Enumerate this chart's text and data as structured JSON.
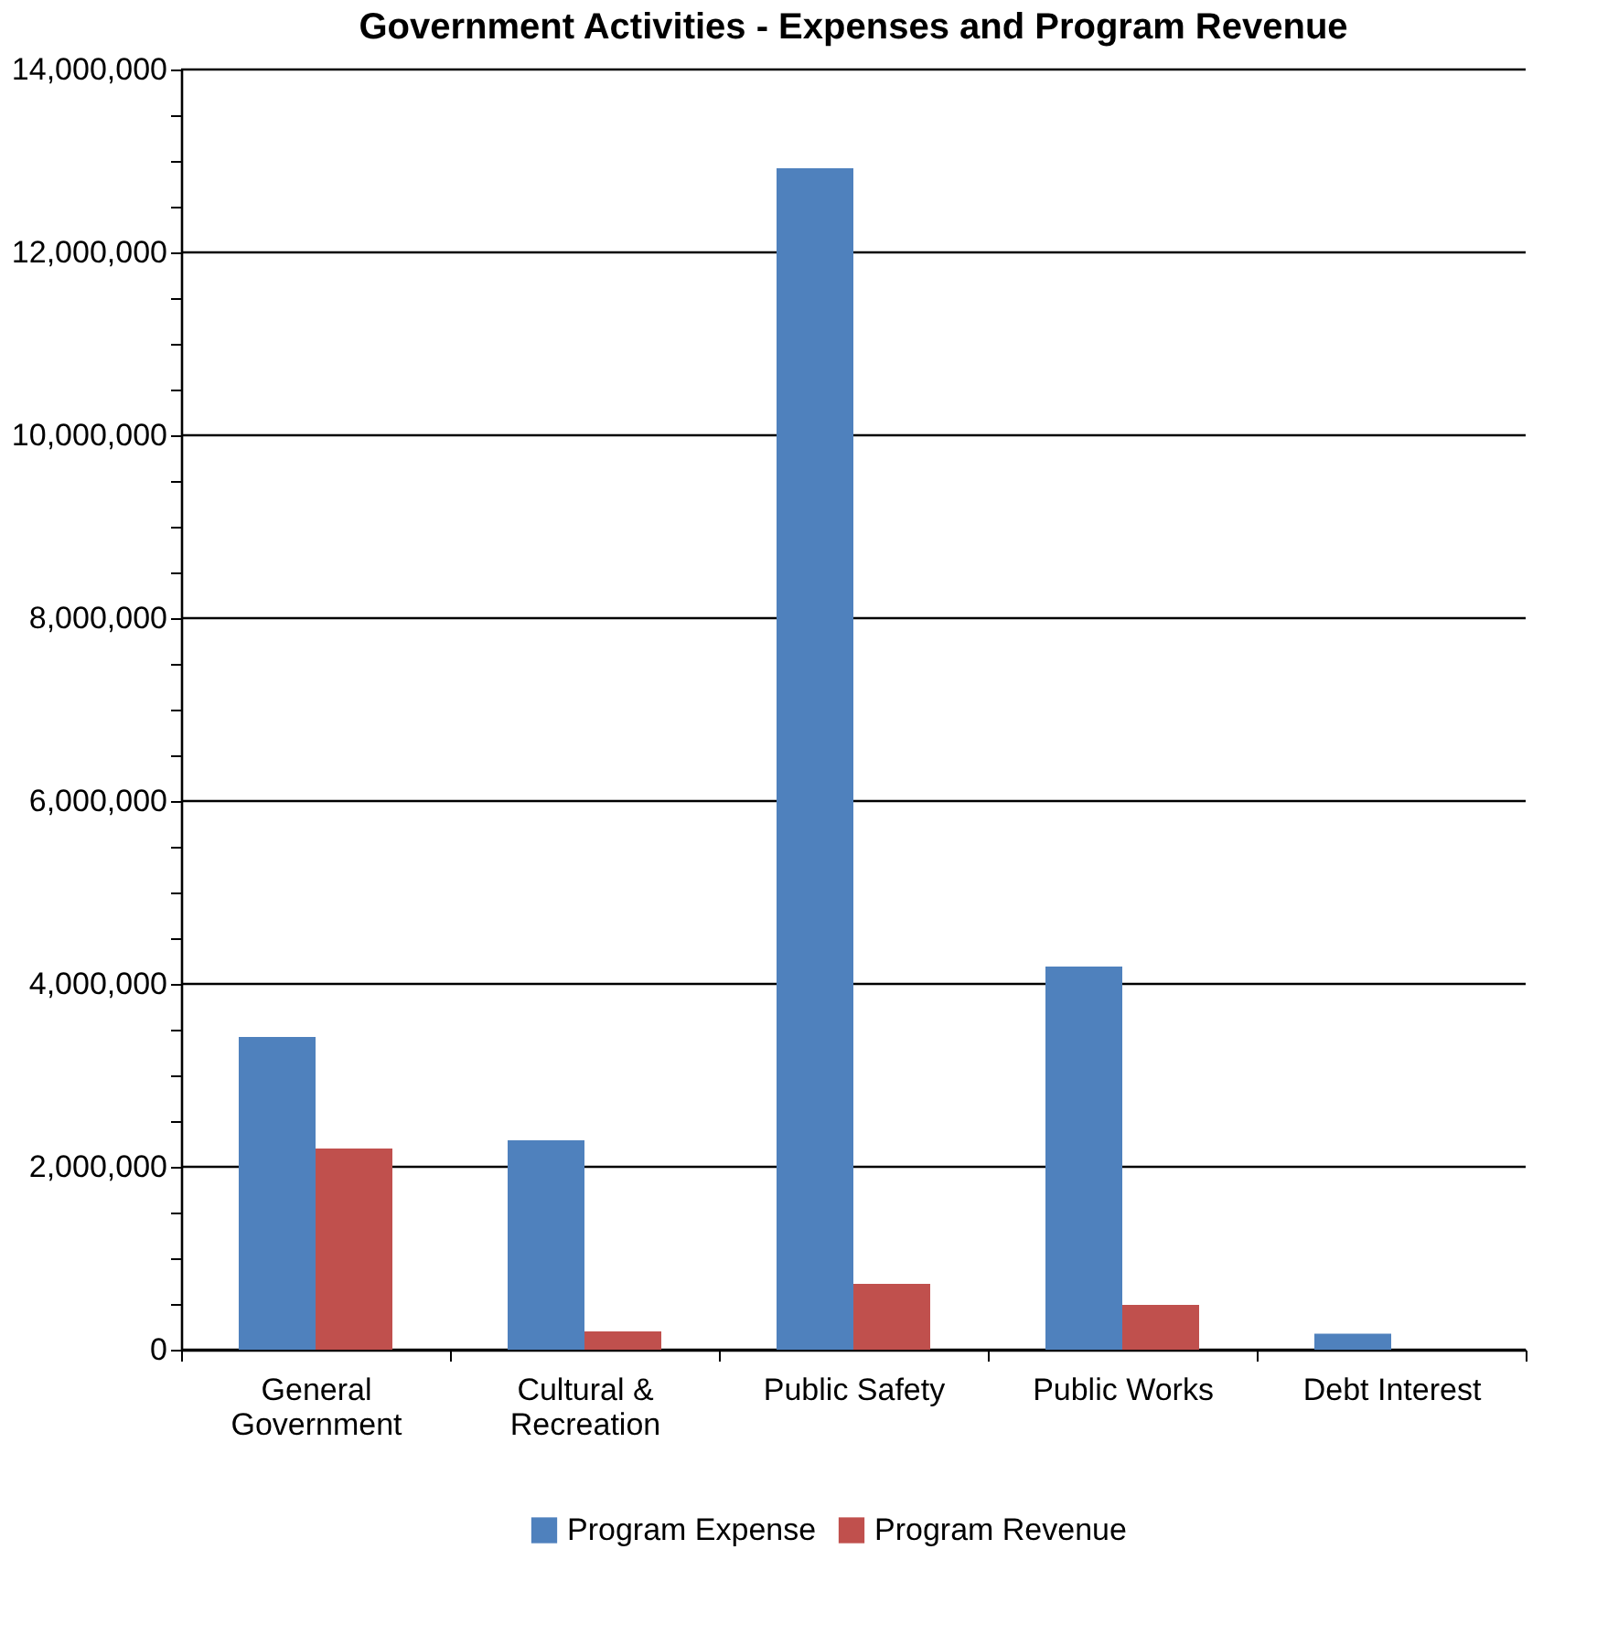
{
  "chart_data": {
    "type": "bar",
    "title": "Government Activities - Expenses and Program Revenue",
    "categories": [
      "General\nGovernment",
      "Cultural &\nRecreation",
      "Public Safety",
      "Public Works",
      "Debt Interest"
    ],
    "series": [
      {
        "name": "Program Expense",
        "color": "#4f81bd",
        "values": [
          3420000,
          2290000,
          12920000,
          4190000,
          176000
        ]
      },
      {
        "name": "Program Revenue",
        "color": "#c0504d",
        "values": [
          2200000,
          200000,
          720000,
          490000,
          0
        ]
      }
    ],
    "ylim": [
      0,
      14000000
    ],
    "yticks": [
      {
        "value": 0,
        "label": "0"
      },
      {
        "value": 500000,
        "label": null
      },
      {
        "value": 1000000,
        "label": null
      },
      {
        "value": 1500000,
        "label": null
      },
      {
        "value": 2000000,
        "label": "2,000,000"
      },
      {
        "value": 2500000,
        "label": null
      },
      {
        "value": 3000000,
        "label": null
      },
      {
        "value": 3500000,
        "label": null
      },
      {
        "value": 4000000,
        "label": "4,000,000"
      },
      {
        "value": 4500000,
        "label": null
      },
      {
        "value": 5000000,
        "label": null
      },
      {
        "value": 5500000,
        "label": null
      },
      {
        "value": 6000000,
        "label": "6,000,000"
      },
      {
        "value": 6500000,
        "label": null
      },
      {
        "value": 7000000,
        "label": null
      },
      {
        "value": 7500000,
        "label": null
      },
      {
        "value": 8000000,
        "label": "8,000,000"
      },
      {
        "value": 8500000,
        "label": null
      },
      {
        "value": 9000000,
        "label": null
      },
      {
        "value": 9500000,
        "label": null
      },
      {
        "value": 10000000,
        "label": "10,000,000"
      },
      {
        "value": 10500000,
        "label": null
      },
      {
        "value": 11000000,
        "label": null
      },
      {
        "value": 11500000,
        "label": null
      },
      {
        "value": 12000000,
        "label": "12,000,000"
      },
      {
        "value": 12500000,
        "label": null
      },
      {
        "value": 13000000,
        "label": null
      },
      {
        "value": 13500000,
        "label": null
      },
      {
        "value": 14000000,
        "label": "14,000,000"
      }
    ],
    "grid": "y",
    "legend": "bottom"
  }
}
